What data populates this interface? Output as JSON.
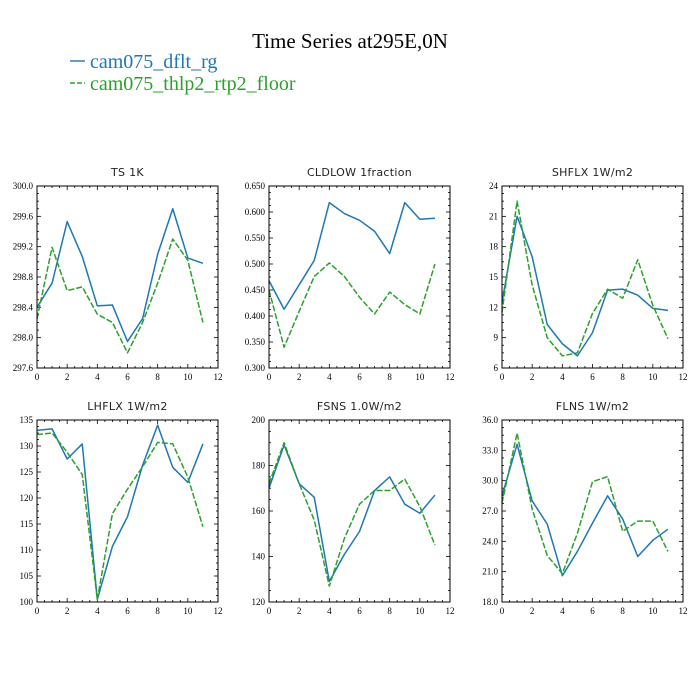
{
  "figure_title": "Time Series at295E,0N",
  "colors": {
    "dflt": "#1f77b4",
    "thlp2": "#2ca02c"
  },
  "legend": [
    {
      "label": "cam075_dflt_rg",
      "color": "#1f77b4",
      "dash": false
    },
    {
      "label": "cam075_thlp2_rtp2_floor",
      "color": "#2ca02c",
      "dash": true
    }
  ],
  "chart_data": [
    {
      "type": "line",
      "title": "TS   1K",
      "xlim": [
        0,
        12
      ],
      "xticks": [
        "0",
        "2",
        "4",
        "6",
        "8",
        "10",
        "12"
      ],
      "ylim": [
        297.6,
        300.0
      ],
      "yticks": [
        "297.6",
        "298.0",
        "298.4",
        "298.8",
        "299.2",
        "299.6",
        "300.0"
      ],
      "x": [
        0,
        1,
        2,
        3,
        4,
        5,
        6,
        7,
        8,
        9,
        10,
        11
      ],
      "series": [
        {
          "name": "cam075_dflt_rg",
          "values": [
            298.4,
            298.72,
            299.53,
            299.07,
            298.42,
            298.43,
            297.95,
            298.25,
            299.1,
            299.7,
            299.05,
            298.98
          ]
        },
        {
          "name": "cam075_thlp2_rtp2_floor",
          "values": [
            298.25,
            299.19,
            298.62,
            298.67,
            298.31,
            298.2,
            297.8,
            298.2,
            298.72,
            299.3,
            299.02,
            298.2
          ]
        }
      ]
    },
    {
      "type": "line",
      "title": "CLDLOW   1fraction",
      "xlim": [
        0,
        12
      ],
      "xticks": [
        "0",
        "2",
        "4",
        "6",
        "8",
        "10",
        "12"
      ],
      "ylim": [
        0.3,
        0.65
      ],
      "yticks": [
        "0.300",
        "0.350",
        "0.400",
        "0.450",
        "0.500",
        "0.550",
        "0.600",
        "0.650"
      ],
      "x": [
        0,
        1,
        2,
        3,
        4,
        5,
        6,
        7,
        8,
        9,
        10,
        11
      ],
      "series": [
        {
          "name": "cam075_dflt_rg",
          "values": [
            0.468,
            0.413,
            0.46,
            0.507,
            0.618,
            0.597,
            0.584,
            0.563,
            0.52,
            0.618,
            0.586,
            0.588
          ]
        },
        {
          "name": "cam075_thlp2_rtp2_floor",
          "values": [
            0.45,
            0.34,
            0.409,
            0.476,
            0.502,
            0.476,
            0.436,
            0.404,
            0.446,
            0.422,
            0.404,
            0.5
          ]
        }
      ]
    },
    {
      "type": "line",
      "title": "SHFLX   1W/m2",
      "xlim": [
        0,
        12
      ],
      "xticks": [
        "0",
        "2",
        "4",
        "6",
        "8",
        "10",
        "12"
      ],
      "ylim": [
        6,
        24
      ],
      "yticks": [
        "6",
        "9",
        "12",
        "15",
        "18",
        "21",
        "24"
      ],
      "x": [
        0,
        1,
        2,
        3,
        4,
        5,
        6,
        7,
        8,
        9,
        10,
        11
      ],
      "series": [
        {
          "name": "cam075_dflt_rg",
          "values": [
            12.5,
            21.0,
            17.0,
            10.3,
            8.4,
            7.2,
            9.5,
            13.7,
            13.8,
            13.2,
            11.9,
            11.7
          ]
        },
        {
          "name": "cam075_thlp2_rtp2_floor",
          "values": [
            11.5,
            22.5,
            14.2,
            9.0,
            7.2,
            7.5,
            11.4,
            13.8,
            12.9,
            16.7,
            12.2,
            8.9
          ]
        }
      ]
    },
    {
      "type": "line",
      "title": "LHFLX   1W/m2",
      "xlim": [
        0,
        12
      ],
      "xticks": [
        "0",
        "2",
        "4",
        "6",
        "8",
        "10",
        "12"
      ],
      "ylim": [
        100,
        135
      ],
      "yticks": [
        "100",
        "105",
        "110",
        "115",
        "120",
        "125",
        "130",
        "135"
      ],
      "x": [
        0,
        1,
        2,
        3,
        4,
        5,
        6,
        7,
        8,
        9,
        10,
        11
      ],
      "series": [
        {
          "name": "cam075_dflt_rg",
          "values": [
            133.0,
            133.3,
            127.5,
            130.4,
            100.5,
            110.7,
            116.4,
            126.3,
            134.0,
            125.9,
            123.0,
            130.4
          ]
        },
        {
          "name": "cam075_thlp2_rtp2_floor",
          "values": [
            132.2,
            132.5,
            128.8,
            124.5,
            100.5,
            117.0,
            121.7,
            126.0,
            130.7,
            130.4,
            124.0,
            114.5
          ]
        }
      ]
    },
    {
      "type": "line",
      "title": "FSNS   1.0W/m2",
      "xlim": [
        0,
        12
      ],
      "xticks": [
        "0",
        "2",
        "4",
        "6",
        "8",
        "10",
        "12"
      ],
      "ylim": [
        120,
        200
      ],
      "yticks": [
        "120",
        "140",
        "160",
        "180",
        "200"
      ],
      "x": [
        0,
        1,
        2,
        3,
        4,
        5,
        6,
        7,
        8,
        9,
        10,
        11
      ],
      "series": [
        {
          "name": "cam075_dflt_rg",
          "values": [
            170,
            189,
            172,
            166,
            129,
            141,
            151,
            169,
            175,
            163,
            159,
            167
          ]
        },
        {
          "name": "cam075_thlp2_rtp2_floor",
          "values": [
            172,
            190,
            172,
            156,
            127,
            148,
            163,
            169,
            169,
            174,
            162,
            145
          ]
        }
      ]
    },
    {
      "type": "line",
      "title": "FLNS   1W/m2",
      "xlim": [
        0,
        12
      ],
      "xticks": [
        "0",
        "2",
        "4",
        "6",
        "8",
        "10",
        "12"
      ],
      "ylim": [
        18.0,
        36.0
      ],
      "yticks": [
        "18.0",
        "21.0",
        "24.0",
        "27.0",
        "30.0",
        "33.0",
        "36.0"
      ],
      "x": [
        0,
        1,
        2,
        3,
        4,
        5,
        6,
        7,
        8,
        9,
        10,
        11
      ],
      "series": [
        {
          "name": "cam075_dflt_rg",
          "values": [
            28.5,
            33.6,
            28.0,
            25.7,
            20.6,
            23.0,
            25.8,
            28.5,
            26.2,
            22.5,
            24.1,
            25.2
          ]
        },
        {
          "name": "cam075_thlp2_rtp2_floor",
          "values": [
            27.8,
            34.7,
            27.2,
            22.6,
            20.8,
            24.8,
            29.9,
            30.4,
            25.0,
            26.0,
            26.0,
            23.0
          ]
        }
      ]
    }
  ]
}
